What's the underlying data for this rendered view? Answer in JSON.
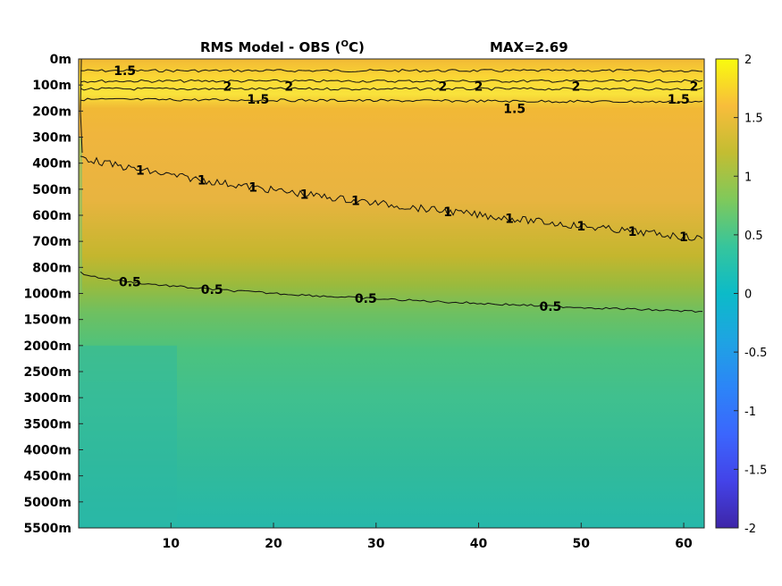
{
  "chart_data": {
    "type": "heatmap",
    "title": "RMS Model - OBS (°C)",
    "title_main": "RMS Model - OBS (",
    "title_sup": "O",
    "title_end": "C)",
    "max_label": "MAX=2.69",
    "xlim": [
      1,
      62
    ],
    "x_ticks": [
      10,
      20,
      30,
      40,
      50,
      60
    ],
    "y_tick_labels": [
      "0m",
      "100m",
      "200m",
      "300m",
      "400m",
      "500m",
      "600m",
      "700m",
      "800m",
      "1000m",
      "1500m",
      "2000m",
      "2500m",
      "3000m",
      "3500m",
      "4000m",
      "4500m",
      "5000m",
      "5500m"
    ],
    "colorbar": {
      "clim": [
        -2,
        2
      ],
      "ticks": [
        "2",
        "1.5",
        "1",
        "0.5",
        "0",
        "-0.5",
        "-1",
        "-1.5",
        "-2"
      ],
      "colormap": "parula"
    },
    "field": {
      "depth_levels": [
        "0m",
        "100m",
        "200m",
        "300m",
        "400m",
        "500m",
        "600m",
        "700m",
        "800m",
        "1000m",
        "1500m",
        "2000m",
        "2500m",
        "3000m",
        "3500m",
        "4000m",
        "4500m",
        "5000m",
        "5500m"
      ],
      "rms_at_x5": [
        1.5,
        1.9,
        1.4,
        1.2,
        1.1,
        0.95,
        0.85,
        0.8,
        0.6,
        0.45,
        0.4,
        0.35,
        0.32,
        0.3,
        0.28,
        0.3,
        0.3,
        0.3,
        0.28
      ],
      "rms_at_x30": [
        1.5,
        1.9,
        1.45,
        1.3,
        1.25,
        1.2,
        1.15,
        1.05,
        0.85,
        0.6,
        0.48,
        0.42,
        0.38,
        0.36,
        0.35,
        0.35,
        0.35,
        0.33,
        0.32
      ],
      "rms_at_x60": [
        1.55,
        1.95,
        1.45,
        1.35,
        1.3,
        1.25,
        1.2,
        1.1,
        1.0,
        0.7,
        0.5,
        0.45,
        0.4,
        0.38,
        0.36,
        0.36,
        0.35,
        0.34,
        0.33
      ]
    },
    "contours": [
      {
        "level": "1.5",
        "labels_x": [
          5.5,
          18.5,
          43.5,
          59.5
        ]
      },
      {
        "level": "2",
        "labels_x": [
          15.5,
          21.5,
          36.5,
          40,
          49.5,
          61
        ]
      },
      {
        "level": "1",
        "labels_x": [
          7,
          13,
          18,
          23,
          28,
          37,
          43,
          50,
          55,
          60
        ]
      },
      {
        "level": "0.5",
        "labels_x": [
          6,
          14,
          29,
          47
        ]
      }
    ]
  }
}
